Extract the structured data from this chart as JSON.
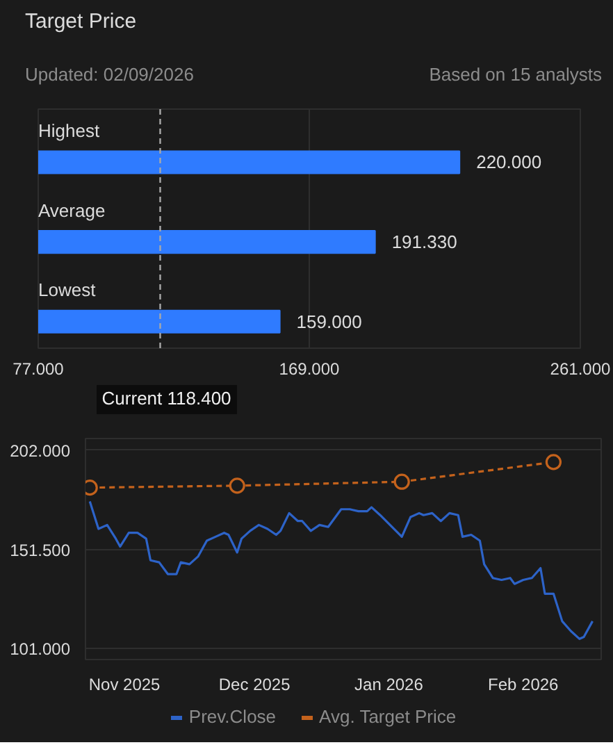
{
  "chart_data": [
    {
      "type": "bar",
      "orientation": "horizontal",
      "title": "Target Price",
      "subtitle": "Updated:  02/09/2026",
      "annotations": [
        "Based on 15 analysts"
      ],
      "categories": [
        "Highest",
        "Average",
        "Lowest"
      ],
      "values": [
        220,
        191.33,
        159
      ],
      "value_labels": [
        "220.000",
        "191.330",
        "159.000"
      ],
      "color": "#2f7bff",
      "xlim": [
        77,
        261
      ],
      "xticks": [
        {
          "value": 77,
          "label": "77.000"
        },
        {
          "value": 169,
          "label": "169.000"
        },
        {
          "value": 261,
          "label": "261.000"
        }
      ],
      "ref_lines": [
        {
          "axis": "x",
          "value": 118.4,
          "label": "Current 118.400",
          "color": "#a8a8a8",
          "line_style": "dashed"
        }
      ],
      "grid": "x"
    },
    {
      "type": "line",
      "x": [
        "2025-10-24",
        "2025-10-26",
        "2025-10-28",
        "2025-10-30",
        "2025-10-31",
        "2025-11-02",
        "2025-11-04",
        "2025-11-06",
        "2025-11-07",
        "2025-11-09",
        "2025-11-11",
        "2025-11-13",
        "2025-11-14",
        "2025-11-16",
        "2025-11-18",
        "2025-11-20",
        "2025-11-22",
        "2025-11-24",
        "2025-11-25",
        "2025-11-27",
        "2025-11-28",
        "2025-11-30",
        "2025-12-02",
        "2025-12-04",
        "2025-12-06",
        "2025-12-07",
        "2025-12-09",
        "2025-12-11",
        "2025-12-12",
        "2025-12-14",
        "2025-12-16",
        "2025-12-18",
        "2025-12-20",
        "2025-12-21",
        "2025-12-23",
        "2025-12-25",
        "2025-12-27",
        "2025-12-28",
        "2025-12-30",
        "2026-01-04",
        "2026-01-06",
        "2026-01-08",
        "2026-01-09",
        "2026-01-11",
        "2026-01-13",
        "2026-01-15",
        "2026-01-17",
        "2026-01-18",
        "2026-01-20",
        "2026-01-22",
        "2026-01-23",
        "2026-01-25",
        "2026-01-27",
        "2026-01-29",
        "2026-01-30",
        "2026-02-01",
        "2026-02-03",
        "2026-02-05",
        "2026-02-06",
        "2026-02-08",
        "2026-02-10",
        "2026-02-12",
        "2026-02-14",
        "2026-02-15",
        "2026-02-17"
      ],
      "series": [
        {
          "name": "Prev.Close",
          "color": "#2d63c8",
          "values": [
            176,
            162,
            164,
            157,
            153,
            160,
            160,
            157,
            146,
            145,
            139,
            139,
            145,
            144,
            148,
            156,
            158,
            160,
            159,
            150,
            157,
            161,
            164,
            162,
            159,
            161,
            170,
            166,
            166,
            161,
            164,
            163,
            169,
            172,
            172,
            171,
            171,
            173,
            169,
            158,
            168,
            170,
            169,
            170,
            166,
            170,
            169,
            158,
            159,
            156,
            144,
            137,
            136,
            137,
            134,
            136,
            137,
            142,
            129,
            129,
            115,
            110,
            106,
            107,
            115
          ]
        },
        {
          "name": "Avg. Target Price",
          "color": "#c4621c",
          "x": [
            "2025-10-24",
            "2025-11-27",
            "2026-01-04",
            "2026-02-08"
          ],
          "values": [
            183,
            184,
            186,
            196
          ],
          "marker": "circle",
          "line_style": "dashed"
        }
      ],
      "xlim": [
        "2025-10-23",
        "2026-02-19"
      ],
      "xticks": [
        {
          "value": "2025-11-01",
          "label": "Nov 2025"
        },
        {
          "value": "2025-12-01",
          "label": "Dec 2025"
        },
        {
          "value": "2026-01-01",
          "label": "Jan 2026"
        },
        {
          "value": "2026-02-01",
          "label": "Feb 2026"
        }
      ],
      "ylim": [
        95.5,
        208
      ],
      "yticks": [
        {
          "value": 101,
          "label": "101.000"
        },
        {
          "value": 151.5,
          "label": "151.500"
        },
        {
          "value": 202,
          "label": "202.000"
        }
      ],
      "grid": "y",
      "legend": "bottom"
    }
  ]
}
